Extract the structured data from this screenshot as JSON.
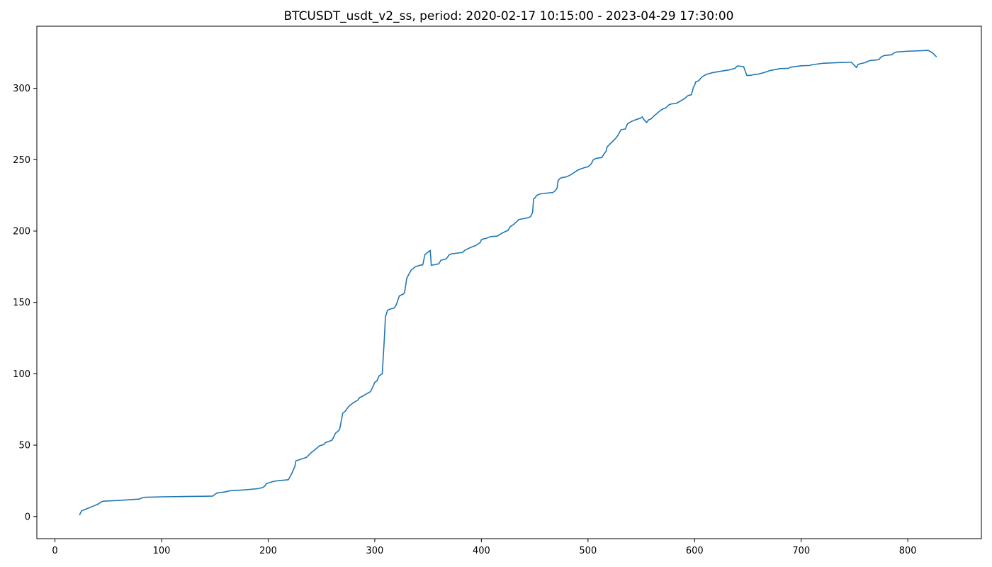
{
  "chart_data": {
    "type": "line",
    "title": "BTCUSDT_usdt_v2_ss, period: 2020-02-17 10:15:00 - 2023-04-29 17:30:00",
    "xlabel": "",
    "ylabel": "",
    "xlim": [
      -17,
      869
    ],
    "ylim": [
      -15.5,
      343.5
    ],
    "xticks": [
      0,
      100,
      200,
      300,
      400,
      500,
      600,
      700,
      800
    ],
    "yticks": [
      0,
      50,
      100,
      150,
      200,
      250,
      300
    ],
    "grid": false,
    "legend": "none",
    "series": [
      {
        "color": "#1f77b4",
        "x": [
          23,
          25,
          30,
          35,
          40,
          42,
          44,
          46,
          50,
          60,
          70,
          79,
          80,
          82,
          85,
          90,
          100,
          120,
          140,
          148,
          150,
          152,
          160,
          163,
          165,
          170,
          180,
          190,
          195,
          197,
          198,
          200,
          205,
          210,
          215,
          219,
          222,
          225,
          226,
          230,
          236,
          240,
          245,
          248,
          250,
          252,
          254,
          256,
          260,
          262,
          263,
          265,
          267,
          270,
          272,
          276,
          280,
          284,
          286,
          288,
          292,
          296,
          298,
          300,
          302,
          304,
          307,
          309,
          310,
          312,
          315,
          318,
          320,
          323,
          327,
          328,
          330,
          334,
          338,
          342,
          345,
          347,
          352,
          353,
          355,
          360,
          362,
          367,
          370,
          372,
          375,
          380,
          382,
          385,
          390,
          395,
          397,
          399,
          400,
          402,
          405,
          408,
          410,
          415,
          418,
          422,
          425,
          427,
          430,
          433,
          435,
          438,
          442,
          446,
          448,
          449,
          450,
          452,
          455,
          460,
          467,
          469,
          470,
          471,
          472,
          474,
          476,
          480,
          484,
          487,
          490,
          493,
          497,
          500,
          503,
          505,
          508,
          513,
          515,
          517,
          518,
          520,
          522,
          524,
          526,
          528,
          531,
          535,
          537,
          540,
          543,
          546,
          549,
          551,
          552,
          555,
          557,
          559,
          561,
          564,
          568,
          570,
          573,
          576,
          578,
          580,
          583,
          590,
          594,
          597,
          599,
          600,
          601,
          603,
          604,
          607,
          609,
          612,
          617,
          625,
          633,
          638,
          640,
          646,
          649,
          652,
          655,
          660,
          665,
          670,
          680,
          688,
          690,
          692,
          700,
          708,
          710,
          720,
          735,
          747,
          750,
          752,
          753,
          755,
          760,
          762,
          765,
          770,
          773,
          775,
          778,
          785,
          787,
          790,
          800,
          810,
          819,
          823,
          825,
          827
        ],
        "values": [
          1,
          4,
          5.5,
          7,
          8.5,
          9.5,
          10.5,
          10.8,
          10.9,
          11.3,
          11.8,
          12.2,
          12.5,
          13.2,
          13.5,
          13.6,
          13.8,
          14.0,
          14.2,
          14.3,
          15.5,
          16.5,
          17.3,
          17.9,
          18.1,
          18.3,
          18.8,
          19.5,
          20.3,
          21.5,
          22.8,
          23.5,
          24.6,
          25.2,
          25.5,
          25.8,
          30,
          35,
          39,
          40,
          41.5,
          44.5,
          47.5,
          49.5,
          50,
          50.3,
          52,
          52.3,
          53.6,
          56.5,
          58.3,
          59.5,
          61,
          72.5,
          73.5,
          77.5,
          79.8,
          81.5,
          83.5,
          84,
          85.8,
          87.5,
          90.5,
          94,
          95,
          98.5,
          100,
          125,
          140,
          144.5,
          145.5,
          146,
          148,
          154.5,
          156,
          157,
          167,
          172.5,
          175,
          176,
          176.3,
          183.5,
          186.5,
          176,
          176.3,
          177,
          179.5,
          180.5,
          183.5,
          184,
          184.3,
          184.8,
          185,
          186.8,
          188.5,
          190,
          191,
          192,
          194,
          194.5,
          195,
          196,
          196.2,
          196.5,
          198,
          199.5,
          200.5,
          203,
          204.5,
          206.5,
          208,
          208.5,
          209,
          210,
          213,
          222.5,
          223,
          225,
          226,
          226.5,
          227,
          228,
          229,
          230,
          235.5,
          237,
          237.5,
          238,
          239.5,
          241,
          242.5,
          243.5,
          244.5,
          245,
          247,
          250,
          251,
          251.5,
          254,
          256,
          259,
          260.5,
          262,
          263.5,
          265,
          267,
          271,
          271.5,
          275,
          276.5,
          277.5,
          278.3,
          279,
          280,
          278.5,
          276,
          278,
          278.5,
          280,
          282,
          284.5,
          285.5,
          286.3,
          288.5,
          289,
          289.2,
          289.5,
          292.5,
          295,
          295.5,
          301,
          302,
          304.5,
          305,
          305.5,
          308,
          309,
          310,
          311,
          312,
          313,
          314,
          315.7,
          315.2,
          309,
          309,
          309.5,
          310,
          311,
          312.3,
          313.8,
          314,
          314.8,
          315,
          315.8,
          316,
          316.5,
          317.5,
          318,
          318.3,
          316,
          314.5,
          316.5,
          317.2,
          318,
          318.8,
          319.5,
          319.8,
          320.2,
          322,
          323,
          323.5,
          324.8,
          325.5,
          326,
          326.3,
          326.6,
          325,
          323.5,
          322
        ]
      }
    ]
  }
}
